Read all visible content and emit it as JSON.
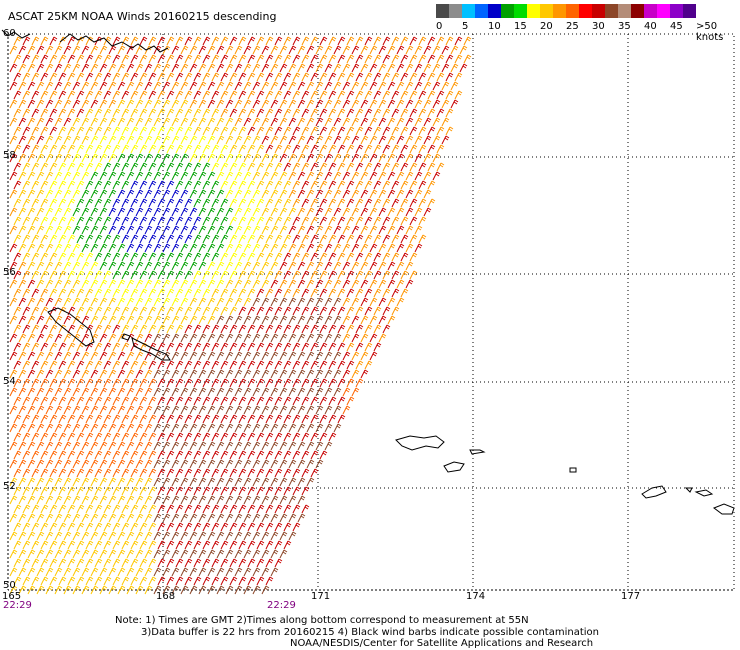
{
  "title": "ASCAT 25KM NOAA Winds 20160215 descending",
  "legend": {
    "colors": [
      "#4a4a4a",
      "#8c8c8c",
      "#00c0ff",
      "#0064ff",
      "#0000c8",
      "#00a000",
      "#00dc00",
      "#ffff00",
      "#ffc800",
      "#ff9600",
      "#ff6400",
      "#ff0000",
      "#c80000",
      "#8c4628",
      "#b48c78",
      "#8c0000",
      "#c800c8",
      "#ff00ff",
      "#8c00c8",
      "#50008c"
    ],
    "ticks": [
      "0",
      "5",
      "10",
      "15",
      "20",
      "25",
      "30",
      "35",
      "40",
      "45",
      ">50 knots"
    ]
  },
  "lat_labels": [
    "60",
    "58",
    "56",
    "54",
    "52",
    "50"
  ],
  "lon_labels": [
    "165",
    "168",
    "171",
    "174",
    "177"
  ],
  "times": [
    "22:29",
    "22:29"
  ],
  "notes": [
    "Note: 1) Times are GMT 2)Times along bottom correspond to measurement at 55N",
    "3)Data buffer is 22 hrs from 20160215 4) Black wind barbs indicate possible contamination",
    "NOAA/NESDIS/Center for Satellite Applications and Research"
  ]
}
